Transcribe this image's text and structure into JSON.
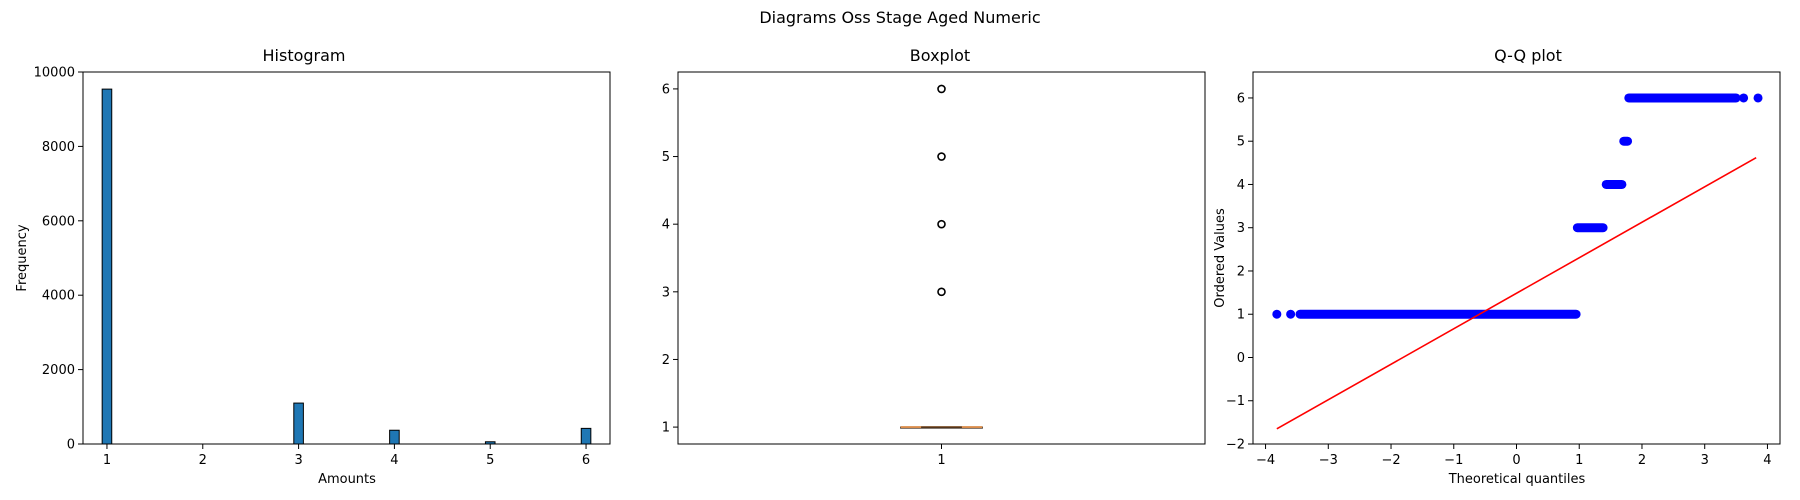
{
  "figure_title": "Diagrams Oss Stage Aged Numeric",
  "chart_data": [
    {
      "type": "bar",
      "title": "Histogram",
      "xlabel": "Amounts",
      "ylabel": "Frequency",
      "xlim": [
        0.75,
        6.25
      ],
      "ylim": [
        0,
        10000
      ],
      "xticks": [
        1,
        2,
        3,
        4,
        5,
        6
      ],
      "yticks": [
        0,
        2000,
        4000,
        6000,
        8000,
        10000
      ],
      "bin_width": 0.1,
      "bins": [
        {
          "x": 1,
          "value": 9540
        },
        {
          "x": 3,
          "value": 1100
        },
        {
          "x": 4,
          "value": 370
        },
        {
          "x": 5,
          "value": 60
        },
        {
          "x": 6,
          "value": 420
        }
      ],
      "bar_color": "#1f77b4",
      "edge_color": "#000000"
    },
    {
      "type": "boxplot",
      "title": "Boxplot",
      "xticks": [
        1
      ],
      "yticks": [
        1,
        2,
        3,
        4,
        5,
        6
      ],
      "ylim": [
        0.75,
        6.25
      ],
      "xlim": [
        0.5,
        1.5
      ],
      "box": {
        "q1": 1,
        "median": 1,
        "q3": 1,
        "whisker_low": 1,
        "whisker_high": 1
      },
      "outliers": [
        3,
        4,
        5,
        6
      ],
      "median_color": "#d98c4a"
    },
    {
      "type": "scatter",
      "title": "Q-Q plot",
      "xlabel": "Theoretical quantiles",
      "ylabel": "Ordered Values",
      "xlim": [
        -4.2,
        4.2
      ],
      "ylim": [
        -2.0,
        6.6
      ],
      "xticks": [
        -4,
        -3,
        -2,
        -1,
        0,
        1,
        2,
        3,
        4
      ],
      "yticks": [
        -2,
        -1,
        0,
        1,
        2,
        3,
        4,
        5,
        6
      ],
      "point_color": "#0000ff",
      "segments": [
        {
          "y": 1,
          "x_from": -3.45,
          "x_to": 0.95
        },
        {
          "y": 3,
          "x_from": 0.97,
          "x_to": 1.38
        },
        {
          "y": 4,
          "x_from": 1.43,
          "x_to": 1.68
        },
        {
          "y": 5,
          "x_from": 1.71,
          "x_to": 1.77
        },
        {
          "y": 6,
          "x_from": 1.79,
          "x_to": 3.5
        }
      ],
      "extra_points": [
        {
          "x": -3.82,
          "y": 1
        },
        {
          "x": -3.6,
          "y": 1
        },
        {
          "x": 3.62,
          "y": 6
        },
        {
          "x": 3.85,
          "y": 6
        }
      ],
      "fit_line": {
        "x": [
          -3.82,
          3.82
        ],
        "y": [
          -1.65,
          4.62
        ],
        "color": "#ff0000"
      }
    }
  ]
}
